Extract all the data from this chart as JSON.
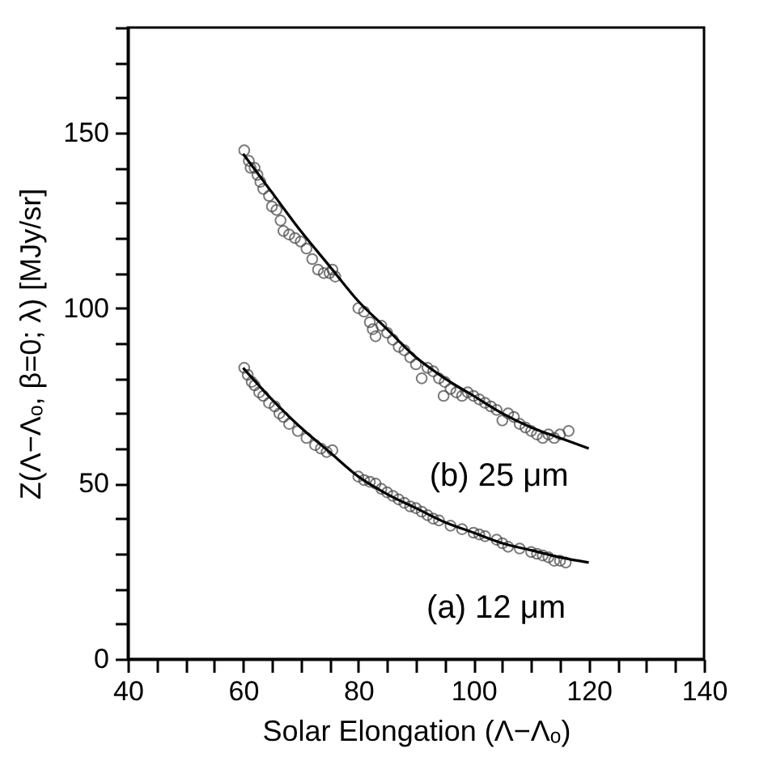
{
  "chart_data": {
    "type": "scatter",
    "xlabel": "Solar Elongation (Λ−Λₒ)",
    "ylabel": "Z(Λ−Λₒ, β=0; λ)  [MJy/sr]",
    "xlim": [
      40,
      140
    ],
    "xticks": [
      40,
      {
        "value": 45,
        "label": null
      },
      {
        "value": 50,
        "label": null
      },
      {
        "value": 55,
        "label": null
      },
      60,
      {
        "value": 65,
        "label": null
      },
      {
        "value": 70,
        "label": null
      },
      {
        "value": 75,
        "label": null
      },
      80,
      {
        "value": 85,
        "label": null
      },
      {
        "value": 90,
        "label": null
      },
      {
        "value": 95,
        "label": null
      },
      100,
      {
        "value": 105,
        "label": null
      },
      {
        "value": 110,
        "label": null
      },
      {
        "value": 115,
        "label": null
      },
      120,
      {
        "value": 125,
        "label": null
      },
      {
        "value": 130,
        "label": null
      },
      {
        "value": 135,
        "label": null
      },
      140
    ],
    "ylim": [
      0,
      180
    ],
    "yticks": [
      0,
      {
        "value": 10,
        "label": null
      },
      {
        "value": 20,
        "label": null
      },
      {
        "value": 30,
        "label": null
      },
      {
        "value": 40,
        "label": null
      },
      50,
      {
        "value": 60,
        "label": null
      },
      {
        "value": 70,
        "label": null
      },
      {
        "value": 80,
        "label": null
      },
      {
        "value": 90,
        "label": null
      },
      100,
      {
        "value": 110,
        "label": null
      },
      {
        "value": 120,
        "label": null
      },
      {
        "value": 130,
        "label": null
      },
      {
        "value": 140,
        "label": null
      },
      150,
      {
        "value": 160,
        "label": null
      },
      {
        "value": 170,
        "label": null
      },
      {
        "value": 180,
        "label": null
      }
    ],
    "grid": false,
    "legend": false,
    "series": [
      {
        "name": "(b) 25 μm",
        "marker": "circle",
        "color": "#444444",
        "x": [
          60.2,
          61,
          61.3,
          62,
          62.5,
          63,
          63.5,
          64.5,
          65,
          65.8,
          66.5,
          67,
          68,
          69,
          70,
          71,
          72,
          73,
          74,
          75,
          75.5,
          76,
          80,
          81,
          82,
          82.5,
          83,
          84,
          85,
          86,
          87,
          88,
          89,
          90,
          91,
          92,
          93,
          94,
          94.8,
          95,
          96,
          97,
          98,
          99,
          100,
          101,
          102,
          103,
          104,
          105,
          106,
          107,
          108,
          109,
          110,
          111,
          112,
          113,
          114,
          115,
          116.5
        ],
        "values": [
          145,
          142,
          140,
          140,
          138,
          136,
          134,
          132,
          129,
          128,
          125,
          122,
          121,
          120,
          119,
          117,
          114,
          111,
          110,
          110,
          111,
          109,
          100,
          99,
          96,
          94,
          92,
          95,
          93,
          91,
          89,
          88,
          86,
          84,
          80,
          83,
          82,
          80,
          75,
          79,
          77,
          76,
          75,
          76,
          75,
          74,
          73,
          72,
          71,
          68,
          70,
          69,
          67,
          66,
          65,
          64,
          63,
          64,
          63,
          64,
          65
        ]
      },
      {
        "name": "(a) 12 μm",
        "marker": "circle",
        "color": "#444444",
        "x": [
          60.2,
          60.8,
          61.5,
          62,
          62.8,
          63.5,
          64.5,
          65.5,
          66.3,
          67,
          68,
          69.5,
          71,
          72.5,
          73.5,
          74.5,
          75.5,
          80,
          81,
          82,
          83,
          84,
          85,
          86,
          87,
          88,
          89,
          90,
          91,
          92,
          93,
          94,
          96,
          98,
          100,
          101,
          102,
          104,
          105,
          106,
          108,
          110,
          111,
          112,
          113,
          114,
          115,
          116
        ],
        "values": [
          83,
          81,
          79,
          78,
          76,
          75,
          73,
          72,
          70,
          69,
          67,
          65,
          63,
          61,
          60,
          59,
          59.5,
          52,
          51,
          50.5,
          50,
          48.5,
          47.5,
          46.5,
          45.5,
          44.5,
          43.5,
          43,
          42,
          41,
          40,
          39.5,
          38,
          37,
          36,
          35.5,
          35,
          34,
          33,
          32,
          31.5,
          30.5,
          30,
          29.5,
          29,
          28,
          28,
          27.5
        ]
      },
      {
        "type": "line",
        "marker": "none",
        "color": "#000000",
        "x": [
          60,
          65,
          70,
          75,
          80,
          85,
          90,
          95,
          100,
          105,
          110,
          115,
          120
        ],
        "values": [
          144,
          133,
          122,
          112,
          102,
          94,
          86,
          80,
          75,
          70,
          66,
          63,
          60
        ]
      },
      {
        "type": "line",
        "marker": "none",
        "color": "#000000",
        "x": [
          60,
          65,
          70,
          75,
          80,
          85,
          90,
          95,
          100,
          105,
          110,
          115,
          120
        ],
        "values": [
          83,
          74,
          66,
          59,
          52,
          47,
          43,
          39,
          36,
          33,
          31,
          29,
          27.5
        ]
      }
    ]
  }
}
